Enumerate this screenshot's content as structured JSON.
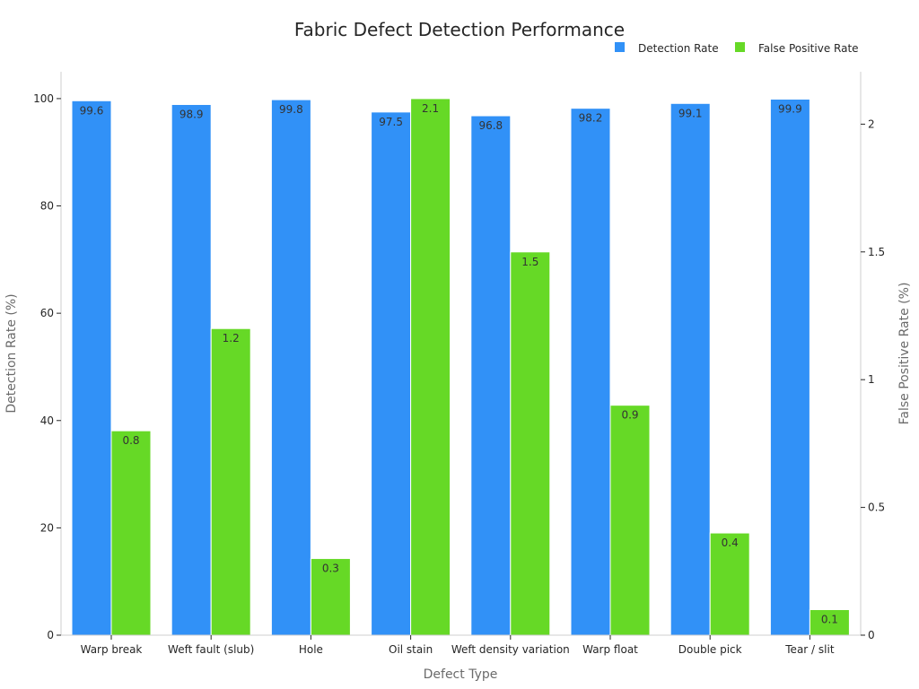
{
  "chart_data": {
    "type": "bar",
    "title": "Fabric Defect Detection Performance",
    "xlabel": "Defect Type",
    "ylabel": "Detection Rate (%)",
    "y2label": "False Positive Rate (%)",
    "categories": [
      "Warp break",
      "Weft fault (slub)",
      "Hole",
      "Oil stain",
      "Weft density variation",
      "Warp float",
      "Double pick",
      "Tear / slit"
    ],
    "series": [
      {
        "name": "Detection Rate",
        "axis": "left",
        "color": "#3191f7",
        "values": [
          99.6,
          98.9,
          99.8,
          97.5,
          96.8,
          98.2,
          99.1,
          99.9
        ]
      },
      {
        "name": "False Positive Rate",
        "axis": "right",
        "color": "#66d926",
        "values": [
          0.8,
          1.2,
          0.3,
          2.1,
          1.5,
          0.9,
          0.4,
          0.1
        ]
      }
    ],
    "ylim": [
      0,
      105
    ],
    "y2lim": [
      0,
      2.205
    ],
    "yticks": [
      "0",
      "20",
      "40",
      "60",
      "80",
      "100"
    ],
    "y2ticks": [
      "0",
      "0.5",
      "1",
      "1.5",
      "2"
    ],
    "legend_position": "top-right",
    "grid": false
  }
}
